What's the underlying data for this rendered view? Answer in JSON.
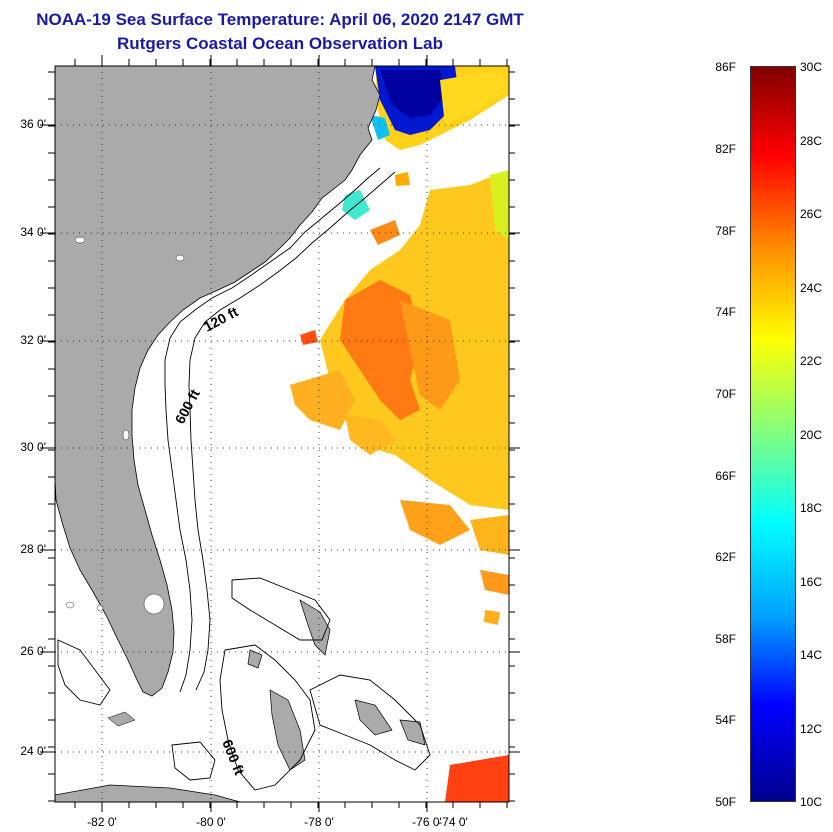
{
  "title": "NOAA-19 Sea Surface Temperature:  April 06, 2020 2147 GMT",
  "subtitle": "Rutgers Coastal Ocean Observation Lab",
  "map": {
    "lat_labels": [
      "36 0'",
      "34 0'",
      "32 0'",
      "30 0'",
      "28 0'",
      "26 0'",
      "24 0'"
    ],
    "lon_labels": [
      "-82 0'",
      "-80 0'",
      "-78 0'",
      "-76 0'",
      "-74 0'"
    ],
    "contour_labels": [
      "120 ft",
      "600 ft",
      "600 ft"
    ],
    "colors": {
      "land": "#aaaaaa",
      "ocean_background": "#ffffff"
    }
  },
  "colorbar": {
    "fahrenheit": [
      "86F",
      "82F",
      "78F",
      "74F",
      "70F",
      "66F",
      "62F",
      "58F",
      "54F",
      "50F"
    ],
    "celsius": [
      "30C",
      "28C",
      "26C",
      "24C",
      "22C",
      "20C",
      "18C",
      "16C",
      "14C",
      "12C",
      "10C"
    ],
    "colors": [
      "#00008f",
      "#0000ff",
      "#00a0ff",
      "#00ffff",
      "#80ff80",
      "#ffff00",
      "#ff9000",
      "#ff0000",
      "#800000"
    ]
  }
}
